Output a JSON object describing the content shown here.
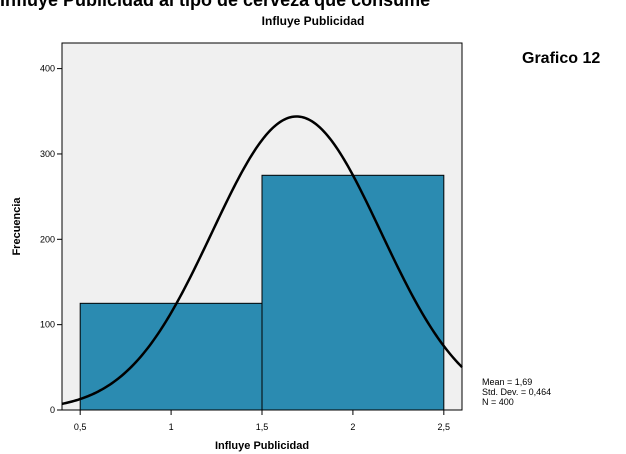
{
  "header": {
    "clipped_text": "Influye Publicidad al tipo de cerveza que consume",
    "figure_label": "Grafico 12"
  },
  "chart_data": {
    "type": "bar",
    "title": "Influye Publicidad",
    "xlabel": "Influye Publicidad",
    "ylabel": "Frecuencia",
    "bins": [
      {
        "x0": 0.5,
        "x1": 1.5,
        "value": 125
      },
      {
        "x0": 1.5,
        "x1": 2.5,
        "value": 275
      }
    ],
    "xlim": [
      0.4,
      2.6
    ],
    "ylim": [
      0,
      430
    ],
    "x_ticks": [
      0.5,
      1,
      1.5,
      2,
      2.5
    ],
    "x_tick_labels": [
      "0,5",
      "1",
      "1,5",
      "2",
      "2,5"
    ],
    "y_ticks": [
      0,
      100,
      200,
      300,
      400
    ],
    "y_tick_labels": [
      "0",
      "100",
      "200",
      "300",
      "400"
    ],
    "normal_curve": {
      "mean": 1.69,
      "std": 0.464,
      "n": 400,
      "bin_width": 1
    },
    "grid": false,
    "bar_color": "#2b8bb1",
    "plot_bg": "#f0f0f0",
    "stats": {
      "mean": "Mean = 1,69",
      "std": "Std. Dev. = 0,464",
      "n": "N = 400"
    }
  }
}
